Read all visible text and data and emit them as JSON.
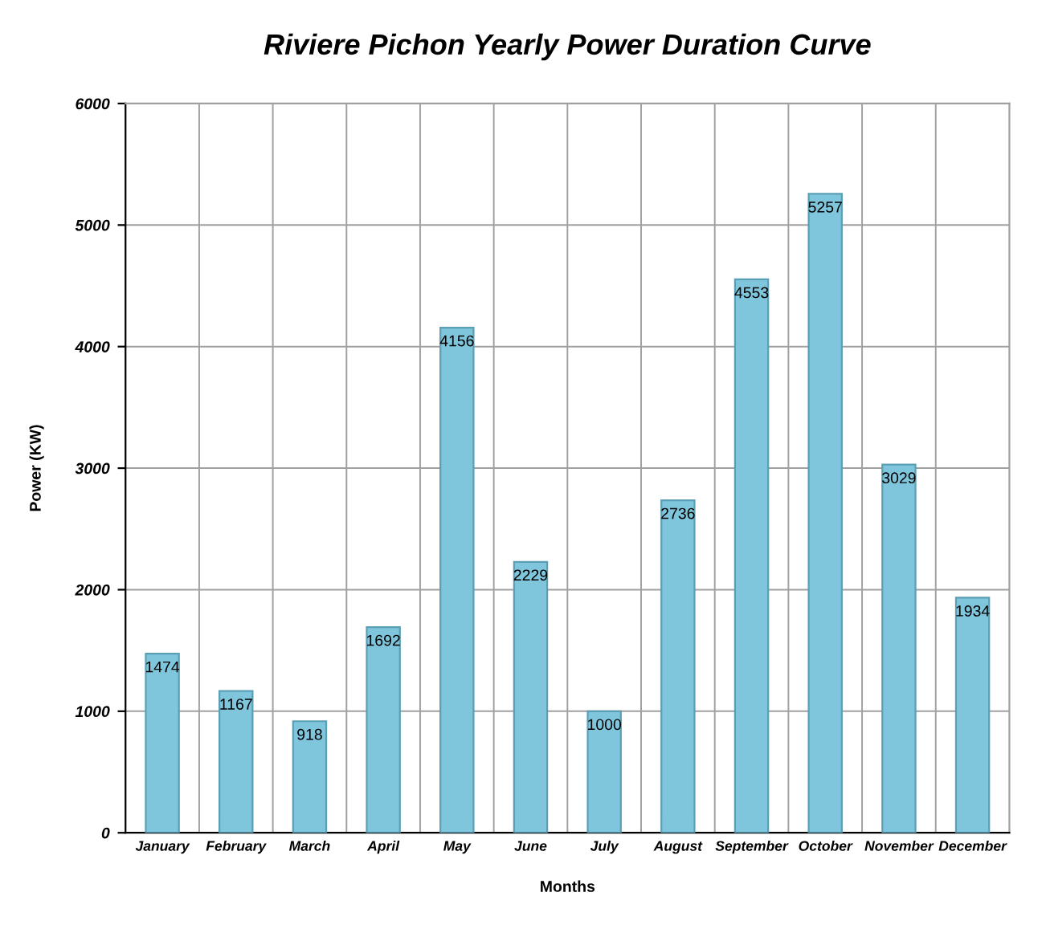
{
  "chart_data": {
    "type": "bar",
    "title": "Riviere Pichon Yearly Power Duration Curve",
    "xlabel": "Months",
    "ylabel": "Power (KW)",
    "categories": [
      "January",
      "February",
      "March",
      "April",
      "May",
      "June",
      "July",
      "August",
      "September",
      "October",
      "November",
      "December"
    ],
    "values": [
      1474,
      1167,
      918,
      1692,
      4156,
      2229,
      1000,
      2736,
      4553,
      5257,
      3029,
      1934
    ],
    "color": "#7fc6dc",
    "ylim": [
      0,
      6000
    ],
    "yticks": [
      0,
      1000,
      2000,
      3000,
      4000,
      5000,
      6000
    ],
    "grid": true,
    "data_labels": true
  }
}
